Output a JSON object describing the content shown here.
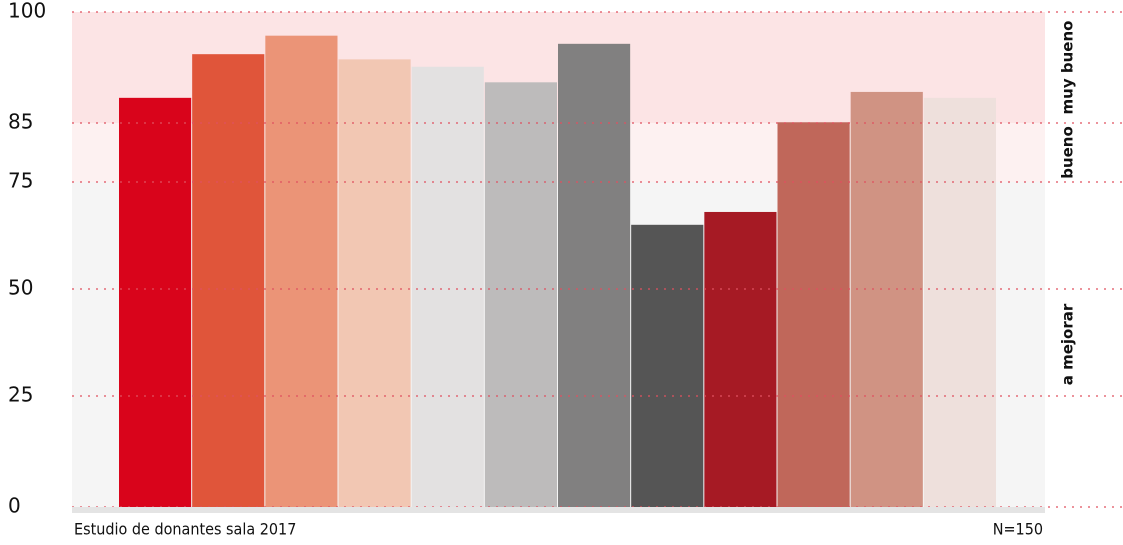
{
  "chart_data": {
    "type": "bar",
    "categories": [
      null,
      null,
      null,
      null,
      null,
      null,
      null,
      null,
      null,
      null,
      null,
      null
    ],
    "values": [
      88.4,
      94.3,
      96.8,
      93.6,
      92.6,
      90.5,
      95.7,
      65,
      68,
      85.1,
      89.2,
      88.4
    ],
    "colors": [
      "#d9041b",
      "#e0553a",
      "#eb9477",
      "#f2c7b3",
      "#e3e1e1",
      "#bdbbbb",
      "#818080",
      "#555555",
      "#a61a24",
      "#c0675a",
      "#d09383",
      "#eee0dc"
    ],
    "ylim": [
      0,
      100
    ],
    "yticks": [
      0,
      25,
      50,
      75,
      85,
      100
    ],
    "bands": [
      {
        "label": "a mejorar",
        "range": [
          0,
          75
        ],
        "color": "#f5f5f5"
      },
      {
        "label": "bueno",
        "range": [
          75,
          85
        ],
        "color": "#fdf1f1"
      },
      {
        "label": "muy bueno",
        "range": [
          85,
          100
        ],
        "color": "#fce4e5"
      }
    ],
    "footnote_left": "Estudio de donantes sala 2017",
    "footnote_right": "N=150"
  }
}
